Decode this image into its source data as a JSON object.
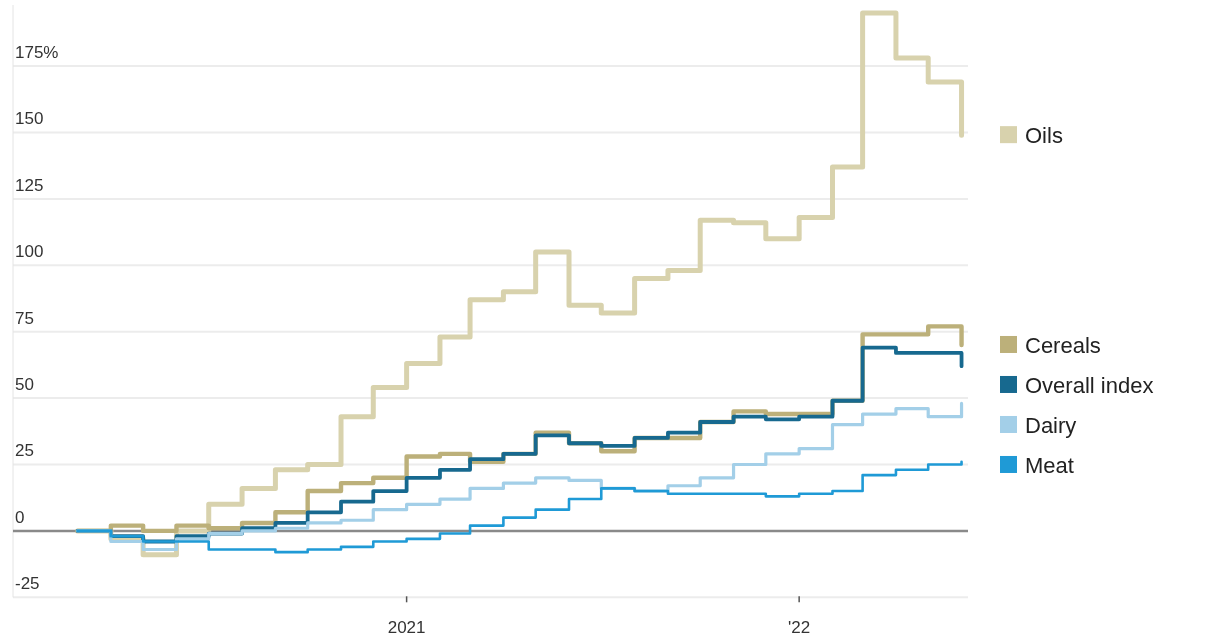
{
  "chart_data": {
    "type": "step",
    "x": [
      "2020-03",
      "2020-04",
      "2020-05",
      "2020-06",
      "2020-07",
      "2020-08",
      "2020-09",
      "2020-10",
      "2020-11",
      "2020-12",
      "2021-01",
      "2021-02",
      "2021-03",
      "2021-04",
      "2021-05",
      "2021-06",
      "2021-07",
      "2021-08",
      "2021-09",
      "2021-10",
      "2021-11",
      "2021-12",
      "2022-01",
      "2022-02",
      "2022-03",
      "2022-04",
      "2022-05",
      "2022-06"
    ],
    "series": [
      {
        "name": "Oils",
        "color": "#d8d2ad",
        "values": [
          0,
          -3,
          -9,
          0,
          10,
          16,
          23,
          25,
          43,
          54,
          63,
          73,
          87,
          90,
          105,
          85,
          82,
          95,
          98,
          117,
          116,
          110,
          118,
          137,
          195,
          178,
          169,
          149
        ]
      },
      {
        "name": "Cereals",
        "color": "#bcb07a",
        "values": [
          0,
          2,
          0,
          2,
          1,
          3,
          7,
          15,
          18,
          20,
          28,
          29,
          26,
          29,
          37,
          33,
          30,
          35,
          35,
          41,
          45,
          44,
          44,
          49,
          74,
          74,
          77,
          70
        ]
      },
      {
        "name": "Overall index",
        "color": "#17698f",
        "values": [
          0,
          -2,
          -4,
          -2,
          -1,
          1,
          3,
          7,
          11,
          15,
          20,
          23,
          27,
          29,
          36,
          33,
          32,
          35,
          37,
          41,
          43,
          42,
          43,
          49,
          69,
          67,
          67,
          62
        ]
      },
      {
        "name": "Dairy",
        "color": "#a3cfe8",
        "values": [
          0,
          -4,
          -7,
          -3,
          -1,
          0,
          1,
          3,
          4,
          8,
          10,
          12,
          16,
          18,
          20,
          19,
          16,
          15,
          17,
          20,
          25,
          29,
          31,
          40,
          44,
          46,
          43,
          48
        ]
      },
      {
        "name": "Meat",
        "color": "#1f9ad6",
        "values": [
          0,
          -2,
          -4,
          -4,
          -7,
          -7,
          -8,
          -7,
          -6,
          -4,
          -3,
          -1,
          2,
          5,
          8,
          12,
          16,
          15,
          14,
          14,
          14,
          13,
          14,
          15,
          21,
          23,
          25,
          26
        ]
      }
    ],
    "xlim": [
      "2020-01-01",
      "2022-06-07"
    ],
    "xticks": [
      {
        "value": "2021-01",
        "label": "2021"
      },
      {
        "value": "2022-01",
        "label": "'22"
      }
    ],
    "ylim": [
      -25,
      198
    ],
    "yticks": [
      -25,
      0,
      25,
      50,
      75,
      100,
      125,
      150,
      {
        "value": 175,
        "label": "175%"
      }
    ],
    "grid": "y",
    "ref_lines": [
      {
        "axis": "y",
        "value": 0,
        "color": "#8a8a8a"
      }
    ],
    "legend": "right",
    "line_style": "solid",
    "marker": "none"
  }
}
